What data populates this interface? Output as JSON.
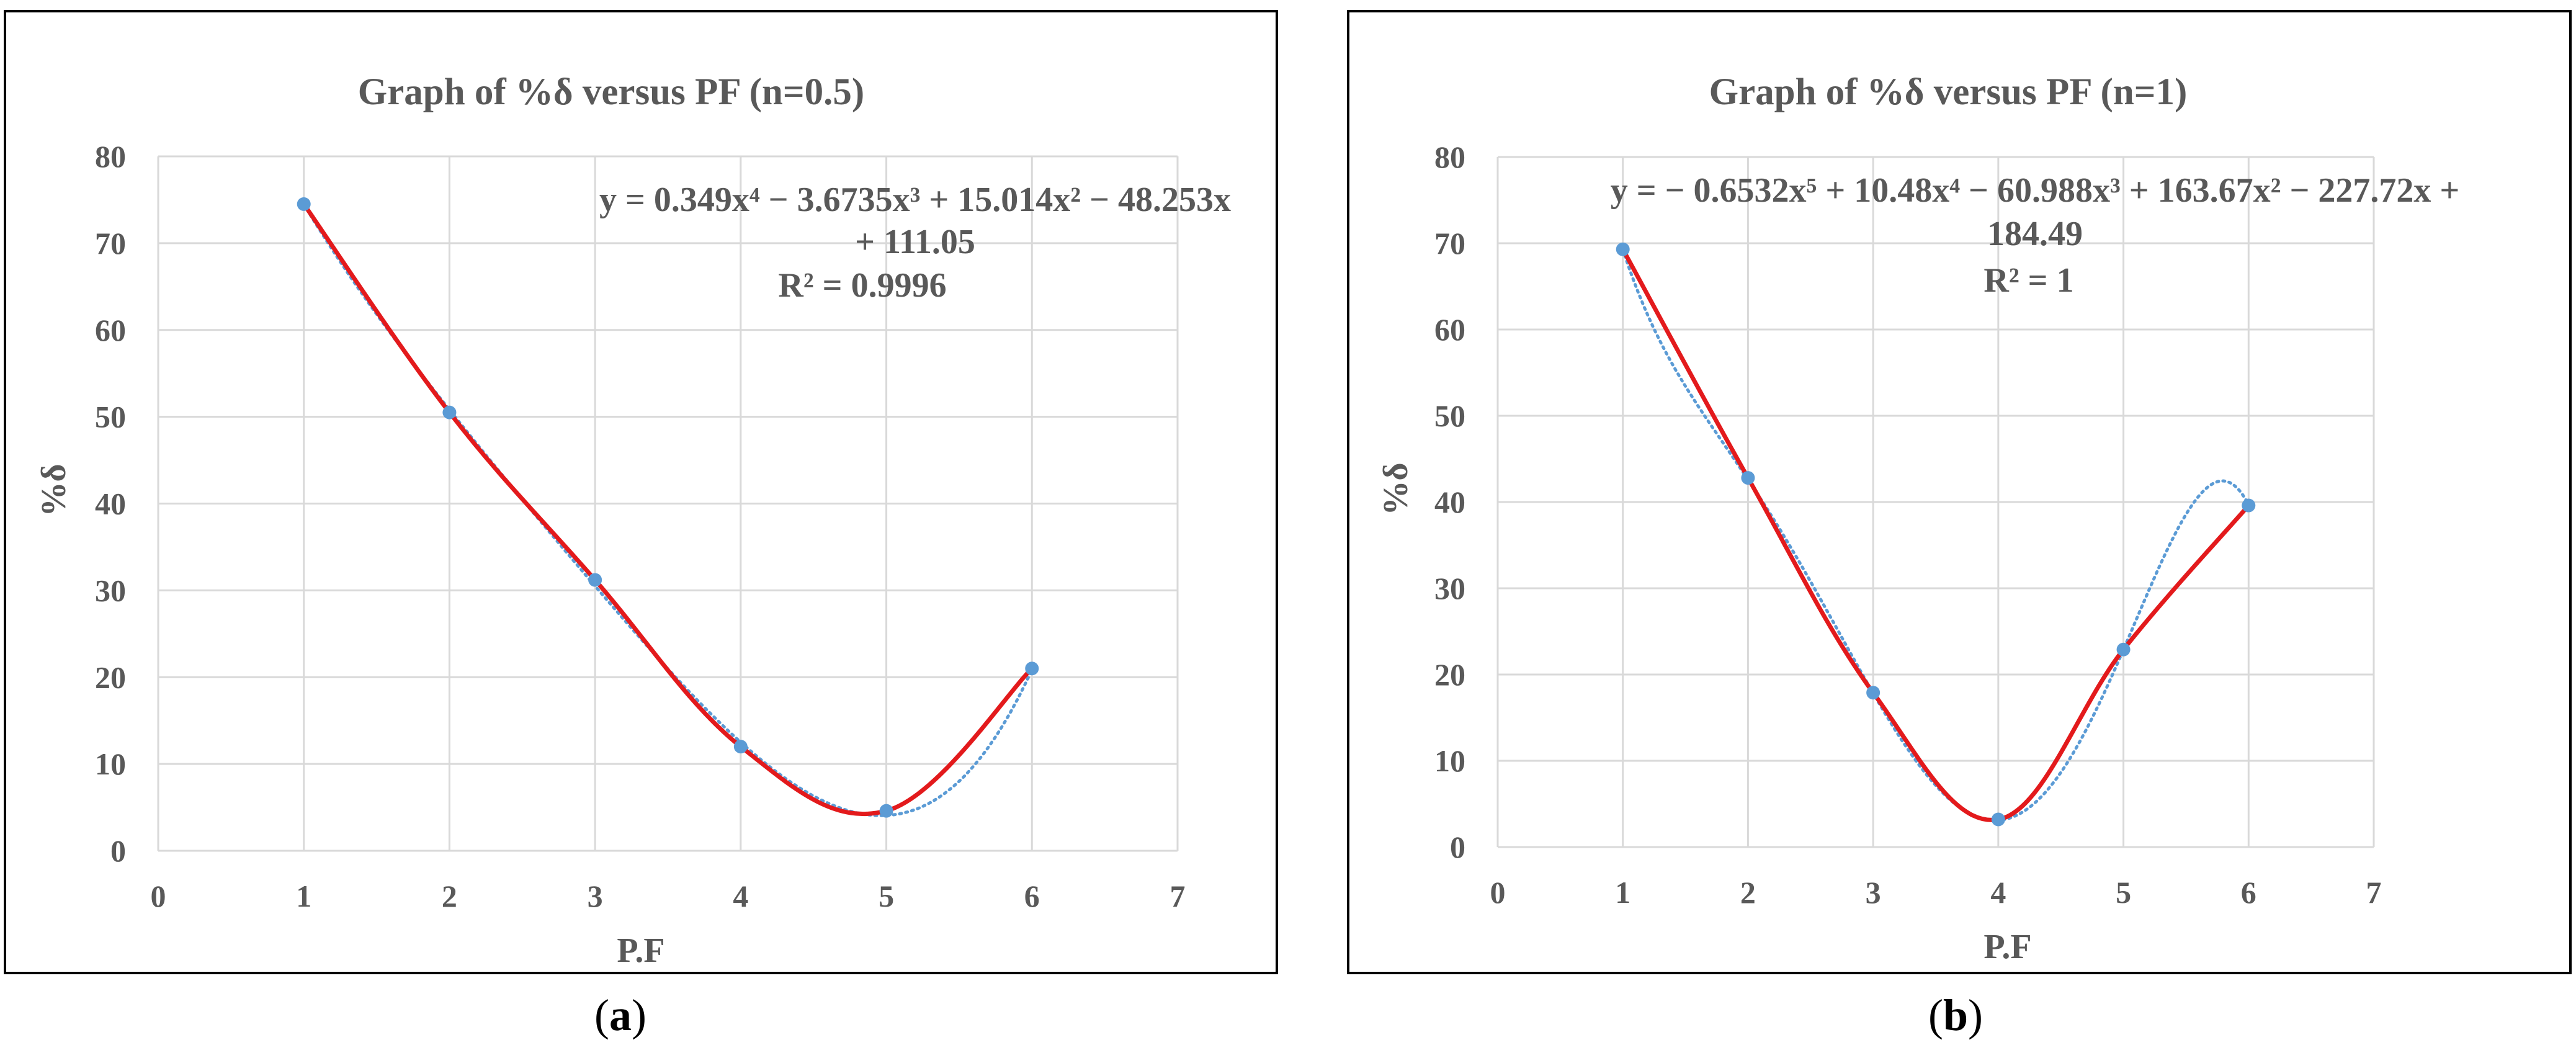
{
  "colors": {
    "actual_line": "#e31a1c",
    "trendline": "#5b9bd5",
    "marker": "#5b9bd5",
    "grid": "#d9d9d9",
    "text": "#595959"
  },
  "chart_data": [
    {
      "type": "line",
      "panel_caption": "a",
      "title": "Graph of %δ versus PF (n=0.5)",
      "xlabel": "P.F",
      "ylabel": "%δ",
      "xlim": [
        0,
        7
      ],
      "ylim": [
        0,
        80
      ],
      "x_ticks": [
        0,
        1,
        2,
        3,
        4,
        5,
        6,
        7
      ],
      "y_ticks": [
        0,
        10,
        20,
        30,
        40,
        50,
        60,
        70,
        80
      ],
      "grid": true,
      "x": [
        1,
        2,
        3,
        4,
        5,
        6
      ],
      "series": [
        {
          "values": [
            74.5,
            50.5,
            31.2,
            12.0,
            4.6,
            21.0
          ],
          "style": "smoothed-solid-with-markers"
        }
      ],
      "trendline": {
        "type": "polynomial",
        "order": 4,
        "coefficients": [
          0.349,
          -3.6735,
          15.014,
          -48.253,
          111.05
        ],
        "style": "dotted",
        "equation_lines": [
          "y = 0.349x⁴ − 3.6735x³ + 15.014x² − 48.253x",
          "+ 111.05",
          "R² = 0.9996"
        ]
      }
    },
    {
      "type": "line",
      "panel_caption": "b",
      "title": "Graph of %δ versus PF (n=1)",
      "xlabel": "P.F",
      "ylabel": "%δ",
      "xlim": [
        0,
        7
      ],
      "ylim": [
        0,
        80
      ],
      "x_ticks": [
        0,
        1,
        2,
        3,
        4,
        5,
        6,
        7
      ],
      "y_ticks": [
        0,
        10,
        20,
        30,
        40,
        50,
        60,
        70,
        80
      ],
      "grid": true,
      "x": [
        1,
        2,
        3,
        4,
        5,
        6
      ],
      "series": [
        {
          "values": [
            69.3,
            42.8,
            17.9,
            3.2,
            22.9,
            39.6
          ],
          "style": "smoothed-solid-with-markers"
        }
      ],
      "trendline": {
        "type": "polynomial",
        "order": 5,
        "coefficients": [
          -0.6532,
          10.48,
          -60.988,
          163.67,
          -227.72,
          184.49
        ],
        "style": "dotted",
        "equation_lines": [
          "y = − 0.6532x⁵ + 10.48x⁴ − 60.988x³ + 163.67x² − 227.72x +",
          "184.49",
          "R² = 1"
        ]
      }
    }
  ]
}
